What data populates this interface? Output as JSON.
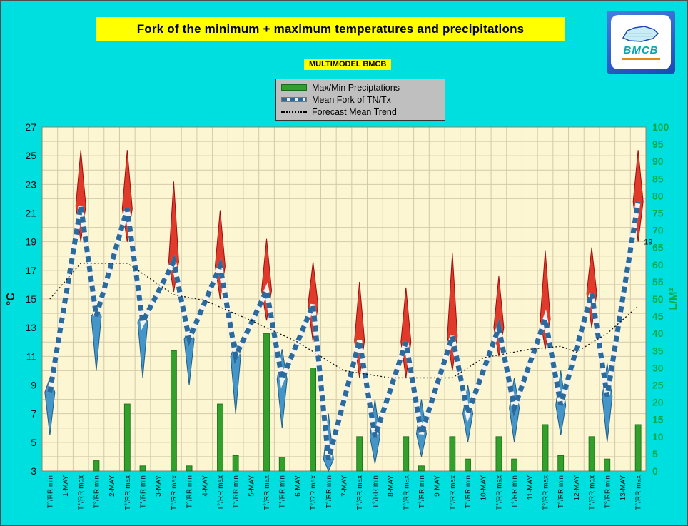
{
  "header": {
    "title": "Fork of the minimum + maximum temperatures and precipitations",
    "subtitle": "MULTIMODEL BMCB"
  },
  "logo": {
    "text": "BMCB"
  },
  "legend": {
    "items": [
      {
        "label": "Max/Min Preciptations",
        "type": "bar",
        "color": "#33a02c"
      },
      {
        "label": "Mean Fork of TN/Tx",
        "type": "dashed",
        "color": "#2a6a9d"
      },
      {
        "label": "Forecast Mean Trend",
        "type": "dotted",
        "color": "#000000"
      }
    ]
  },
  "chart_data": {
    "type": "composite",
    "subtypes": [
      "bar",
      "range-spindle",
      "dashed-zigzag-line",
      "dotted-trend-line"
    ],
    "title": "Fork of the minimum + maximum temperatures and precipitations",
    "left_axis": {
      "title": "°C",
      "min": 3,
      "max": 27,
      "ticks": [
        27,
        25,
        23,
        21,
        19,
        17,
        15,
        13,
        11,
        9,
        7,
        5,
        3
      ]
    },
    "right_axis": {
      "title": "L/M²",
      "min": 0,
      "max": 100,
      "ticks": [
        100,
        95,
        90,
        85,
        80,
        75,
        70,
        65,
        60,
        55,
        50,
        45,
        40,
        35,
        30,
        25,
        20,
        15,
        10,
        5,
        0
      ],
      "color": "#00a843"
    },
    "x_tick_labels": [
      "T°/RR min",
      "1-MAY",
      "T°/RR max",
      "T°/RR min",
      "2-MAY",
      "T°/RR max",
      "T°/RR min",
      "3-MAY",
      "T°/RR max",
      "T°/RR min",
      "4-MAY",
      "T°/RR max",
      "T°/RR min",
      "5-MAY",
      "T°/RR max",
      "T°/RR min",
      "6-MAY",
      "T°/RR max",
      "T°/RR min",
      "7-MAY",
      "T°/RR max",
      "T°/RR min",
      "8-MAY",
      "T°/RR max",
      "T°/RR min",
      "9-MAY",
      "T°/RR max",
      "T°/RR min",
      "10-MAY",
      "T°/RR max",
      "T°/RR min",
      "11-MAY",
      "T°/RR max",
      "T°/RR min",
      "12-MAY",
      "T°/RR max",
      "T°/RR min",
      "13-MAY",
      "T°/RR max"
    ],
    "days": [
      {
        "date": "1-MAY",
        "tmin": 8.5,
        "tmax": 21.5,
        "min_spread": [
          5.5,
          9.5
        ],
        "max_spread": [
          19.0,
          25.4
        ],
        "precip_min": 0,
        "precip_max": 0
      },
      {
        "date": "2-MAY",
        "tmin": 13.8,
        "tmax": 21.3,
        "min_spread": [
          10.0,
          14.3
        ],
        "max_spread": [
          19.0,
          25.4
        ],
        "precip_min": 3,
        "precip_max": 19.5
      },
      {
        "date": "3-MAY",
        "tmin": 13.4,
        "tmax": 17.6,
        "min_spread": [
          9.5,
          14.0
        ],
        "max_spread": [
          15.5,
          23.2
        ],
        "precip_min": 1.5,
        "precip_max": 35
      },
      {
        "date": "4-MAY",
        "tmin": 12.2,
        "tmax": 17.3,
        "min_spread": [
          9.0,
          13.0
        ],
        "max_spread": [
          15.0,
          21.2
        ],
        "precip_min": 1.5,
        "precip_max": 19.5
      },
      {
        "date": "5-MAY",
        "tmin": 11.0,
        "tmax": 15.6,
        "min_spread": [
          7.0,
          12.0
        ],
        "max_spread": [
          13.5,
          19.2
        ],
        "precip_min": 4.5,
        "precip_max": 40
      },
      {
        "date": "6-MAY",
        "tmin": 9.4,
        "tmax": 14.6,
        "min_spread": [
          6.0,
          11.5
        ],
        "max_spread": [
          12.0,
          17.6
        ],
        "precip_min": 4,
        "precip_max": 30
      },
      {
        "date": "7-MAY",
        "tmin": 3.8,
        "tmax": 12.1,
        "min_spread": [
          3.0,
          7.0
        ],
        "max_spread": [
          9.5,
          16.2
        ],
        "precip_min": 0,
        "precip_max": 10
      },
      {
        "date": "8-MAY",
        "tmin": 5.4,
        "tmax": 12.0,
        "min_spread": [
          3.5,
          8.0
        ],
        "max_spread": [
          9.5,
          15.8
        ],
        "precip_min": 0,
        "precip_max": 10
      },
      {
        "date": "9-MAY",
        "tmin": 5.6,
        "tmax": 12.4,
        "min_spread": [
          4.0,
          8.0
        ],
        "max_spread": [
          10.0,
          18.2
        ],
        "precip_min": 1.5,
        "precip_max": 10
      },
      {
        "date": "10-MAY",
        "tmin": 7.0,
        "tmax": 13.0,
        "min_spread": [
          5.0,
          9.0
        ],
        "max_spread": [
          11.0,
          16.6
        ],
        "precip_min": 3.5,
        "precip_max": 10
      },
      {
        "date": "11-MAY",
        "tmin": 7.4,
        "tmax": 13.6,
        "min_spread": [
          5.0,
          9.5
        ],
        "max_spread": [
          11.5,
          18.4
        ],
        "precip_min": 3.5,
        "precip_max": 13.5
      },
      {
        "date": "12-MAY",
        "tmin": 7.6,
        "tmax": 15.4,
        "min_spread": [
          5.5,
          10.0
        ],
        "max_spread": [
          13.0,
          18.6
        ],
        "precip_min": 4.5,
        "precip_max": 10
      },
      {
        "date": "13-MAY",
        "tmin": 8.2,
        "tmax": 21.8,
        "min_spread": [
          5.0,
          10.5
        ],
        "max_spread": [
          19.0,
          25.4
        ],
        "precip_min": 3.5,
        "precip_max": 13.5
      }
    ],
    "trend_points": [
      {
        "slot": 0,
        "value": 15.0
      },
      {
        "slot": 2,
        "value": 17.5
      },
      {
        "slot": 5,
        "value": 17.5
      },
      {
        "slot": 8,
        "value": 15.3
      },
      {
        "slot": 10,
        "value": 14.9
      },
      {
        "slot": 13,
        "value": 13.5
      },
      {
        "slot": 16,
        "value": 12.0
      },
      {
        "slot": 19,
        "value": 10.0
      },
      {
        "slot": 22,
        "value": 9.5
      },
      {
        "slot": 26,
        "value": 9.5
      },
      {
        "slot": 28,
        "value": 10.9
      },
      {
        "slot": 31,
        "value": 11.5
      },
      {
        "slot": 33,
        "value": 11.7
      },
      {
        "slot": 34,
        "value": 11.3
      },
      {
        "slot": 36,
        "value": 12.6
      },
      {
        "slot": 38,
        "value": 14.5
      }
    ],
    "annotation": {
      "text": "19",
      "slot": 38,
      "value": 19
    },
    "legend_position": "top-center",
    "grid": true,
    "colors": {
      "page_background": "#00dfdf",
      "plot_background": "#fdf6d3",
      "grid": "#d3caa8",
      "plot_border": "#8b8568",
      "bar": "#33a02c",
      "bar_edge": "#1a6b1a",
      "fork_line": "#2a6a9d",
      "fork_line_gap": "#f2f2f2",
      "max_spindle": "#e03a2a",
      "max_spindle_edge": "#9c1010",
      "min_spindle": "#4596c8",
      "min_spindle_edge": "#1f5e8a",
      "trend": "#111111",
      "left_axis_text": "#111111",
      "right_axis_text": "#00a843",
      "banner": "#ffff00"
    }
  }
}
